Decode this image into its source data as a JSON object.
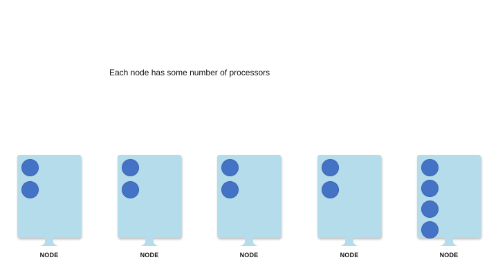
{
  "caption": "Each node has some number of processors",
  "colors": {
    "node_fill": "#b5dcea",
    "processor_fill": "#4472c4",
    "text": "#111111"
  },
  "nodes": [
    {
      "label": "NODE",
      "processors": 2
    },
    {
      "label": "NODE",
      "processors": 2
    },
    {
      "label": "NODE",
      "processors": 2
    },
    {
      "label": "NODE",
      "processors": 2
    },
    {
      "label": "NODE",
      "processors": 4
    }
  ]
}
